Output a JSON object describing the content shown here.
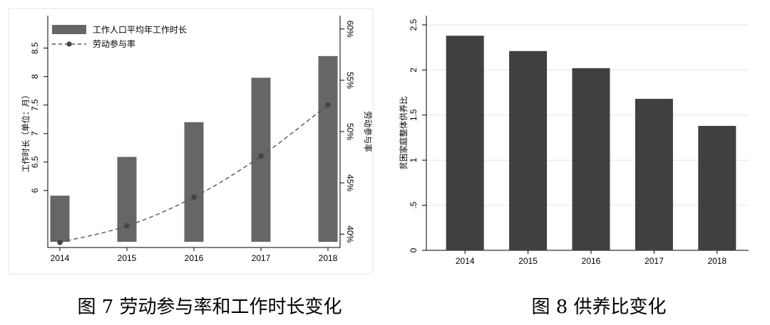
{
  "chart_data": [
    {
      "type": "bar",
      "categories": [
        "2014",
        "2015",
        "2016",
        "2017",
        "2018"
      ],
      "series": [
        {
          "name": "工作人口平均年工作时长",
          "type": "bar",
          "axis": "left",
          "color": "#666666",
          "values": [
            5.91,
            6.59,
            7.2,
            7.98,
            8.36
          ]
        },
        {
          "name": "劳动参与率",
          "type": "line",
          "axis": "right",
          "color": "#555555",
          "line_style": "dashed",
          "marker": "circle",
          "values": [
            39.2,
            40.8,
            43.6,
            47.6,
            52.6
          ]
        }
      ],
      "ylabel": "工作时长（单位：月）",
      "y2label": "劳动参与率",
      "ylim": [
        5.0,
        9.07
      ],
      "yticks": [
        6,
        6.5,
        7,
        7.5,
        8,
        8.5
      ],
      "y2lim": [
        38.7,
        61.3
      ],
      "y2ticks": [
        40,
        45,
        50,
        55,
        60
      ],
      "y2tick_suffix": "%",
      "legend_position": "top-left",
      "grid": false,
      "caption": "图 7  劳动参与率和工作时长变化"
    },
    {
      "type": "bar",
      "categories": [
        "2014",
        "2015",
        "2016",
        "2017",
        "2018"
      ],
      "values": [
        2.38,
        2.21,
        2.02,
        1.68,
        1.38
      ],
      "color": "#404040",
      "ylabel": "贫困家庭整体供养比",
      "ylim": [
        0,
        2.5
      ],
      "yticks": [
        0,
        0.5,
        1,
        1.5,
        2,
        2.5
      ],
      "ytick_labels": [
        "0",
        ".5",
        "1",
        "1.5",
        "2",
        "2.5"
      ],
      "grid": true,
      "caption": "图 8  供养比变化"
    }
  ]
}
